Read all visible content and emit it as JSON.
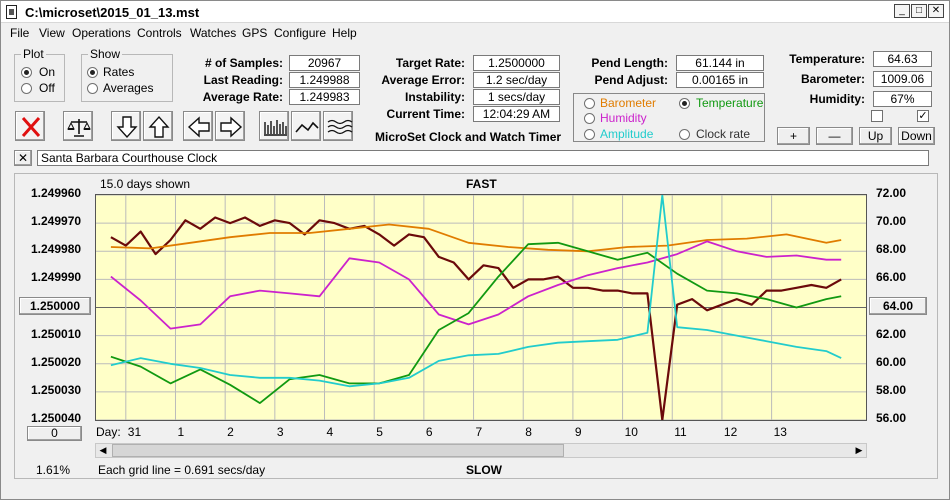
{
  "window": {
    "title": "C:\\microset\\2015_01_13.mst"
  },
  "menu": [
    "File",
    "View",
    "Operations",
    "Controls",
    "Watches",
    "GPS",
    "Configure",
    "Help"
  ],
  "plot_group": {
    "legend": "Plot",
    "options": [
      "On",
      "Off"
    ],
    "selected": "On"
  },
  "show_group": {
    "legend": "Show",
    "options": [
      "Rates",
      "Averages"
    ],
    "selected": "Rates"
  },
  "stats": {
    "samples_label": "# of Samples:",
    "samples": "20967",
    "last_label": "Last Reading:",
    "last": "1.249988",
    "avg_label": "Average Rate:",
    "avg": "1.249983",
    "target_label": "Target Rate:",
    "target": "1.2500000",
    "err_label": "Average Error:",
    "err": "1.2 sec/day",
    "instab_label": "Instability:",
    "instab": "1 secs/day",
    "time_label": "Current Time:",
    "time": "12:04:29 AM",
    "pend_len_label": "Pend Length:",
    "pend_len": "61.144 in",
    "pend_adj_label": "Pend Adjust:",
    "pend_adj": "0.00165 in",
    "temp_label": "Temperature:",
    "temp": "64.63",
    "baro_label": "Barometer:",
    "baro": "1009.06",
    "hum_label": "Humidity:",
    "hum": "67%"
  },
  "app_caption": "MicroSet Clock and Watch Timer",
  "sensors": {
    "options": [
      {
        "label": "Barometer",
        "color": "#e07c00"
      },
      {
        "label": "Temperature",
        "color": "#119911"
      },
      {
        "label": "Humidity",
        "color": "#cc22cc"
      },
      {
        "label": "Amplitude",
        "color": "#22cccc"
      },
      {
        "label": "Clock rate",
        "color": "#333333"
      }
    ],
    "selected": "Temperature"
  },
  "right_buttons": [
    "+",
    "—",
    "Up",
    "Down"
  ],
  "checkboxes": [
    false,
    true
  ],
  "clock_name": "Santa Barbara Courthouse Clock",
  "chart_labels": {
    "days_shown": "15.0 days shown",
    "fast": "FAST",
    "slow": "SLOW",
    "grid_note": "Each grid line = 0.691 secs/day",
    "percent": "1.61%",
    "left_button": "1.250000",
    "right_button": "64.00",
    "bottom_button": "0",
    "day_label": "Day:"
  },
  "chart_data": {
    "type": "line",
    "x_label": "Day:",
    "x_ticks": [
      "31",
      "1",
      "2",
      "3",
      "4",
      "5",
      "6",
      "7",
      "8",
      "9",
      "10",
      "11",
      "12",
      "13"
    ],
    "y_left_ticks": [
      "1.249960",
      "1.249970",
      "1.249980",
      "1.249990",
      "1.250000",
      "1.250010",
      "1.250020",
      "1.250030",
      "1.250040"
    ],
    "y_right_ticks": [
      "72.00",
      "70.00",
      "68.00",
      "66.00",
      "64.00",
      "62.00",
      "60.00",
      "58.00",
      "56.00"
    ],
    "y_left_range": [
      1.24996,
      1.25004
    ],
    "y_right_range": [
      56,
      72
    ],
    "x_range": [
      30,
      14.5
    ],
    "cursor_day": 10.35,
    "series": [
      {
        "name": "Clock rate",
        "color": "#6b0a0a",
        "x": [
          29.7,
          30.0,
          30.3,
          30.6,
          30.9,
          31.2,
          31.5,
          31.8,
          32.1,
          32.4,
          32.7,
          33.0,
          33.3,
          33.6,
          33.9,
          34.2,
          34.5,
          34.8,
          35.1,
          35.4,
          35.7,
          36.0,
          36.3,
          36.6,
          36.9,
          37.2,
          37.5,
          37.8,
          38.1,
          38.4,
          38.7,
          39.0,
          39.3,
          39.6,
          39.9,
          40.2,
          40.5,
          40.8,
          41.1,
          41.4,
          41.7,
          42.0,
          42.3,
          42.6,
          42.9,
          43.2,
          43.5,
          43.8,
          44.1,
          44.4
        ],
        "values": [
          1.249975,
          1.249978,
          1.249973,
          1.249981,
          1.249976,
          1.249969,
          1.249972,
          1.249968,
          1.24997,
          1.249968,
          1.249971,
          1.249969,
          1.24997,
          1.249974,
          1.249969,
          1.24997,
          1.249972,
          1.249971,
          1.249974,
          1.249978,
          1.249974,
          1.249975,
          1.249982,
          1.249984,
          1.24999,
          1.249985,
          1.249986,
          1.249993,
          1.24999,
          1.24999,
          1.249989,
          1.249993,
          1.249993,
          1.249994,
          1.249994,
          1.249995,
          1.249995,
          1.25004,
          1.249999,
          1.249997,
          1.250001,
          1.249999,
          1.249997,
          1.249999,
          1.249994,
          1.249994,
          1.249993,
          1.249992,
          1.249993,
          1.24999
        ]
      },
      {
        "name": "Barometer",
        "color": "#e07c00",
        "x": [
          29.7,
          30.5,
          31.3,
          32.1,
          32.9,
          33.7,
          34.5,
          35.3,
          36.1,
          36.9,
          37.7,
          38.5,
          39.3,
          40.1,
          40.9,
          41.7,
          42.5,
          43.3,
          44.1,
          44.4
        ],
        "values": [
          68.3,
          68.2,
          68.6,
          69.0,
          69.3,
          69.3,
          69.6,
          69.9,
          69.6,
          68.6,
          68.3,
          68.1,
          68.0,
          68.3,
          68.4,
          68.8,
          68.9,
          69.2,
          68.6,
          68.8
        ]
      },
      {
        "name": "Humidity",
        "color": "#cc22cc",
        "x": [
          29.7,
          30.3,
          30.9,
          31.5,
          32.1,
          32.7,
          33.3,
          33.9,
          34.5,
          35.1,
          35.7,
          36.3,
          36.9,
          37.5,
          38.1,
          38.7,
          39.3,
          39.9,
          40.5,
          41.1,
          41.7,
          42.3,
          42.9,
          43.5,
          44.1,
          44.4
        ],
        "values": [
          66.2,
          64.5,
          62.5,
          62.8,
          64.8,
          65.2,
          65.0,
          64.8,
          67.5,
          67.2,
          66.0,
          63.5,
          62.8,
          63.5,
          64.8,
          65.6,
          66.3,
          66.8,
          67.2,
          67.8,
          68.7,
          68.0,
          67.6,
          67.7,
          67.4,
          67.4
        ]
      },
      {
        "name": "Temperature",
        "color": "#119911",
        "x": [
          29.7,
          30.3,
          30.9,
          31.5,
          32.1,
          32.7,
          33.3,
          33.9,
          34.5,
          35.1,
          35.7,
          36.3,
          36.9,
          37.5,
          38.1,
          38.7,
          39.3,
          39.9,
          40.5,
          41.1,
          41.7,
          42.3,
          42.9,
          43.5,
          44.1,
          44.4
        ],
        "values": [
          60.5,
          59.8,
          58.6,
          59.6,
          58.5,
          57.2,
          58.9,
          59.2,
          58.6,
          58.6,
          59.2,
          62.4,
          63.6,
          66.2,
          68.5,
          68.6,
          68.0,
          67.4,
          67.9,
          66.4,
          65.2,
          65.0,
          64.6,
          64.0,
          64.6,
          64.8
        ]
      },
      {
        "name": "Amplitude",
        "color": "#22cccc",
        "x": [
          29.7,
          30.3,
          30.9,
          31.5,
          32.1,
          32.7,
          33.3,
          33.9,
          34.5,
          35.1,
          35.7,
          36.3,
          36.9,
          37.5,
          38.1,
          38.7,
          39.3,
          39.9,
          40.5,
          40.8,
          41.1,
          41.7,
          42.3,
          42.9,
          43.5,
          44.1,
          44.4
        ],
        "values": [
          59.9,
          60.4,
          60.0,
          59.7,
          59.2,
          59.0,
          59.0,
          58.8,
          58.4,
          58.6,
          59.0,
          60.2,
          60.6,
          60.7,
          61.2,
          61.5,
          61.6,
          61.7,
          62.2,
          72.0,
          62.6,
          62.4,
          62.0,
          61.6,
          61.2,
          60.9,
          60.4
        ]
      }
    ]
  }
}
